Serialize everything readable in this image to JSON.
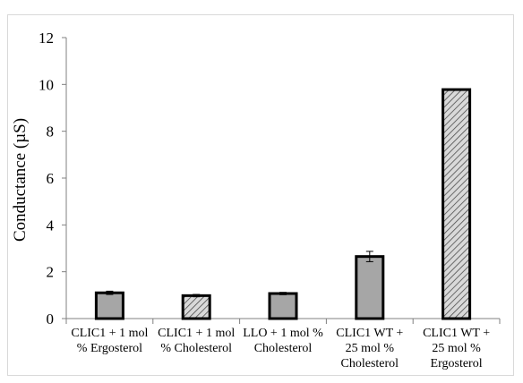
{
  "chart_data": {
    "type": "bar",
    "categories": [
      [
        "CLIC1 + 1 mol",
        "% Ergosterol"
      ],
      [
        "CLIC1 + 1 mol",
        "% Cholesterol"
      ],
      [
        "LLO + 1 mol %",
        "Cholesterol"
      ],
      [
        "CLIC1 WT +",
        "25 mol %",
        "Cholesterol"
      ],
      [
        "CLIC1 WT +",
        "25 mol %",
        "Ergosterol"
      ]
    ],
    "values": [
      1.1,
      0.98,
      1.07,
      2.65,
      9.78
    ],
    "errors": [
      0.07,
      0.05,
      0.05,
      0.22,
      0.0
    ],
    "patterns": [
      "solid",
      "hatched",
      "solid",
      "solid",
      "hatched"
    ],
    "xlabel": "",
    "ylabel": "Conductance (µS)",
    "ylim": [
      0,
      12
    ],
    "yticks": [
      0,
      2,
      4,
      6,
      8,
      10,
      12
    ],
    "grid": false,
    "colors": {
      "bar_fill": "#a6a6a6",
      "bar_edge": "#000000",
      "hatch_bg": "#d9d9d9",
      "axis": "#808080"
    }
  }
}
